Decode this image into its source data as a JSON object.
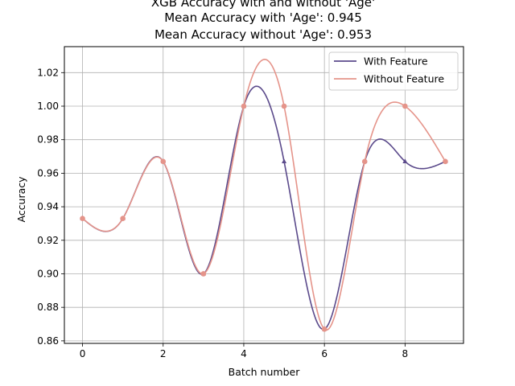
{
  "chart_data": {
    "type": "line",
    "title_lines": [
      "XGB Accuracy with and without 'Age'",
      "Mean Accuracy with 'Age': 0.945",
      "Mean Accuracy without 'Age': 0.953"
    ],
    "xlabel": "Batch number",
    "ylabel": "Accuracy",
    "xlim": [
      -0.45,
      9.45
    ],
    "ylim": [
      0.8585,
      1.0355
    ],
    "xticks": [
      0,
      2,
      4,
      6,
      8
    ],
    "yticks": [
      0.86,
      0.88,
      0.9,
      0.92,
      0.94,
      0.96,
      0.98,
      1.0,
      1.02
    ],
    "grid": true,
    "legend_position": "top-right",
    "x": [
      0,
      1,
      2,
      3,
      4,
      5,
      6,
      7,
      8,
      9
    ],
    "series": [
      {
        "name": "With Feature",
        "color": "#5b4a8b",
        "marker": "triangle",
        "values": [
          0.933,
          0.933,
          0.967,
          0.9,
          1.0,
          0.967,
          0.867,
          0.967,
          0.967,
          0.967
        ]
      },
      {
        "name": "Without Feature",
        "color": "#e5948a",
        "marker": "circle",
        "values": [
          0.933,
          0.933,
          0.967,
          0.9,
          1.0,
          1.0,
          0.867,
          0.967,
          1.0,
          0.967
        ]
      }
    ]
  }
}
